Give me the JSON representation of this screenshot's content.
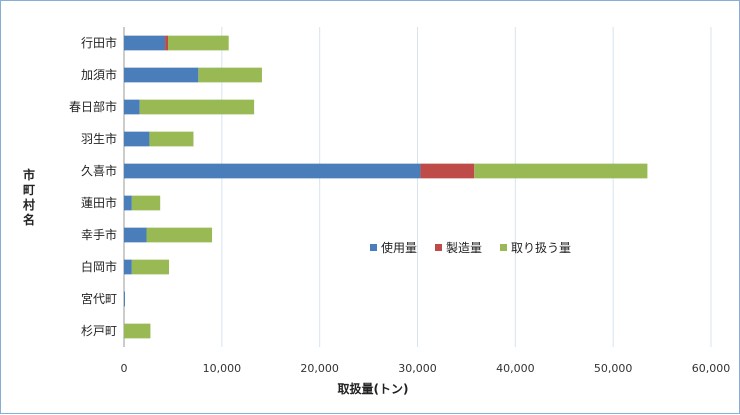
{
  "chart_data": {
    "type": "bar",
    "orientation": "horizontal",
    "stacked": true,
    "categories": [
      "行田市",
      "加須市",
      "春日部市",
      "羽生市",
      "久喜市",
      "蓮田市",
      "幸手市",
      "白岡市",
      "宮代町",
      "杉戸町"
    ],
    "series": [
      {
        "name": "使用量",
        "color": "#4a7ebb",
        "values": [
          4200,
          7600,
          1600,
          2600,
          30300,
          800,
          2300,
          800,
          100,
          0
        ]
      },
      {
        "name": "製造量",
        "color": "#be4b48",
        "values": [
          300,
          0,
          0,
          0,
          5500,
          0,
          0,
          0,
          0,
          0
        ]
      },
      {
        "name": "取り扱う量",
        "color": "#98b954",
        "values": [
          6200,
          6500,
          11700,
          4500,
          17700,
          2900,
          6700,
          3800,
          0,
          2700
        ]
      }
    ],
    "xlabel": "取扱量(トン)",
    "ylabel": "市町村名",
    "xlim": [
      0,
      60000
    ],
    "xticks": [
      0,
      10000,
      20000,
      30000,
      40000,
      50000,
      60000
    ],
    "xtick_labels": [
      "0",
      "10,000",
      "20,000",
      "30,000",
      "40,000",
      "50,000",
      "60,000"
    ],
    "grid": "vertical",
    "legend": "center-right"
  }
}
